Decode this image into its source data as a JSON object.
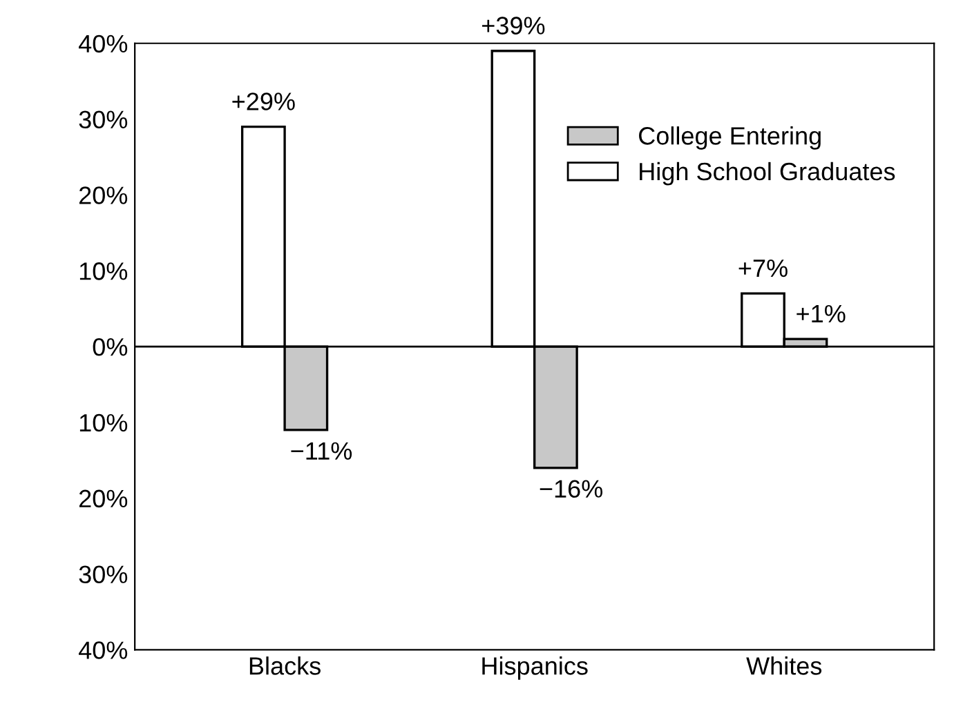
{
  "chart_data": {
    "type": "bar",
    "categories": [
      "Blacks",
      "Hispanics",
      "Whites"
    ],
    "series": [
      {
        "name": "High School Graduates",
        "color": "#ffffff",
        "values": [
          29,
          39,
          7
        ],
        "value_labels": [
          "+29%",
          "+39%",
          "+7%"
        ]
      },
      {
        "name": "College Entering",
        "color": "#c8c8c8",
        "values": [
          -11,
          -16,
          1
        ],
        "value_labels": [
          "−11%",
          "−16%",
          "+1%"
        ]
      }
    ],
    "ylim": [
      -40,
      40
    ],
    "yticks": [
      {
        "value": 40,
        "label": "40%"
      },
      {
        "value": 30,
        "label": "30%"
      },
      {
        "value": 20,
        "label": "20%"
      },
      {
        "value": 10,
        "label": "10%"
      },
      {
        "value": 0,
        "label": "0%"
      },
      {
        "value": -10,
        "label": "10%"
      },
      {
        "value": -20,
        "label": "20%"
      },
      {
        "value": -30,
        "label": "30%"
      },
      {
        "value": -40,
        "label": "40%"
      }
    ],
    "ref_lines": [
      {
        "axis": "y",
        "value": 0,
        "color": "#000000"
      }
    ],
    "legend": "top right",
    "grid": false
  }
}
